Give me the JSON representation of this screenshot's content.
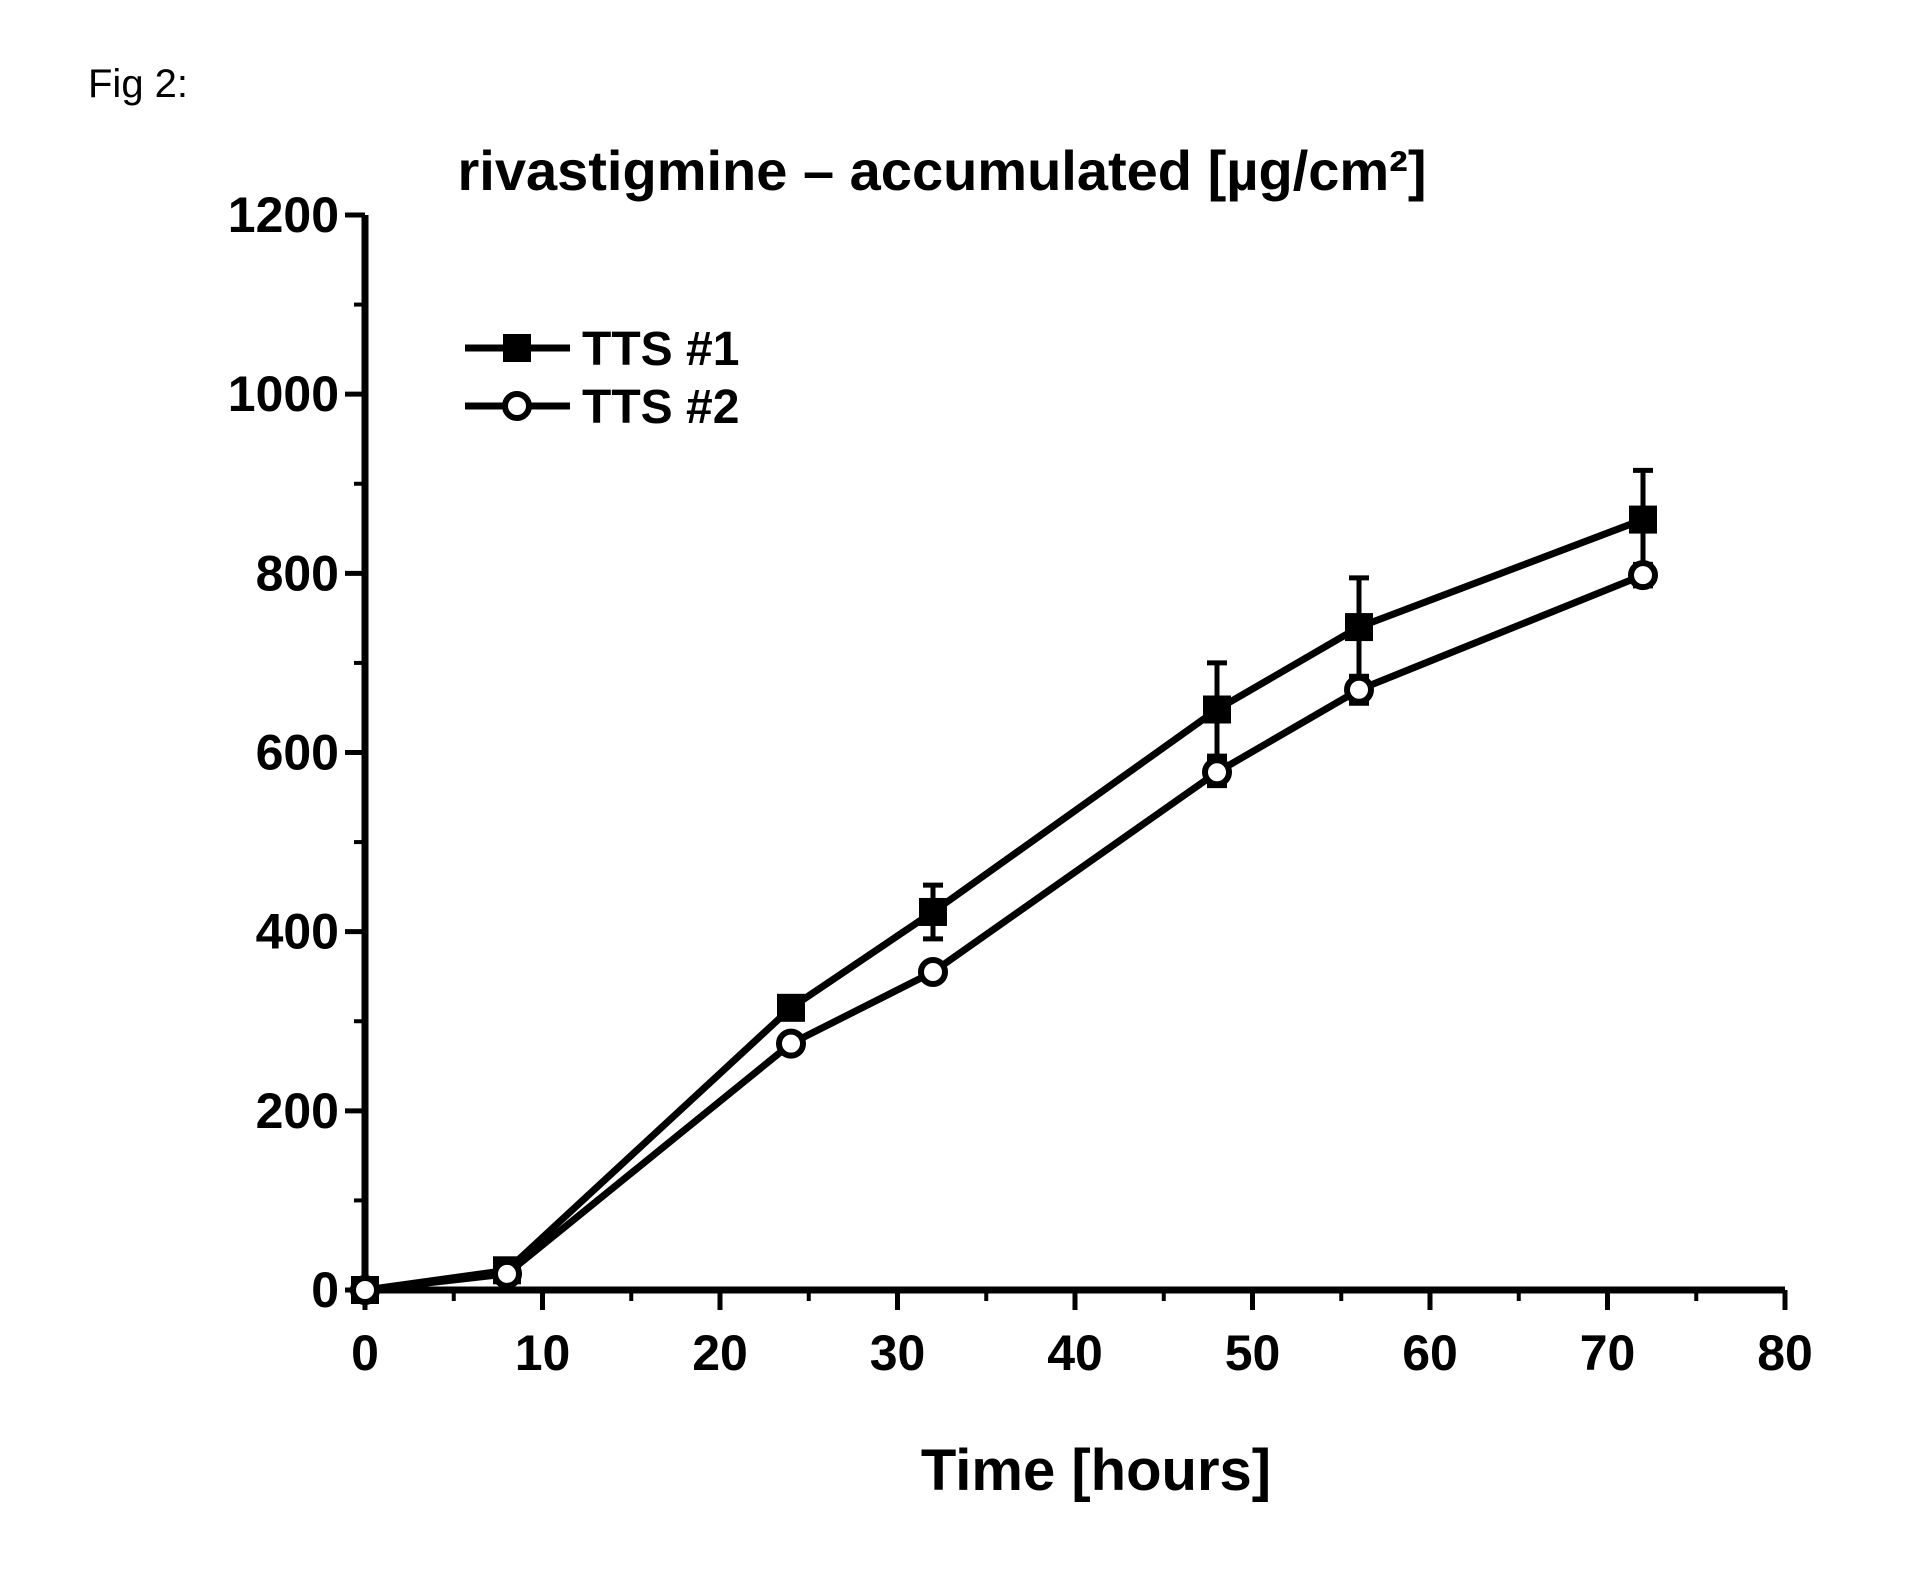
{
  "figure_label": "Fig 2:",
  "chart_data": {
    "type": "line",
    "title": "rivastigmine – accumulated [µg/cm²]",
    "xlabel": "Time [hours]",
    "ylabel": "",
    "xlim": [
      0,
      80
    ],
    "ylim": [
      0,
      1200
    ],
    "x_ticks": [
      0,
      10,
      20,
      30,
      40,
      50,
      60,
      70,
      80
    ],
    "y_ticks": [
      0,
      200,
      400,
      600,
      800,
      1000,
      1200
    ],
    "grid": false,
    "legend_position": "top-left",
    "series": [
      {
        "name": "TTS #1",
        "marker": "filled-square",
        "color": "#000000",
        "x": [
          0,
          8,
          24,
          32,
          48,
          56,
          72
        ],
        "y": [
          0,
          22,
          315,
          422,
          648,
          740,
          860
        ],
        "error": [
          0,
          0,
          12,
          30,
          52,
          55,
          55
        ]
      },
      {
        "name": "TTS #2",
        "marker": "open-circle",
        "color": "#000000",
        "x": [
          0,
          8,
          24,
          32,
          48,
          56,
          72
        ],
        "y": [
          0,
          18,
          275,
          355,
          578,
          670,
          798
        ],
        "error": [
          0,
          0,
          0,
          0,
          15,
          15,
          12
        ]
      }
    ]
  }
}
